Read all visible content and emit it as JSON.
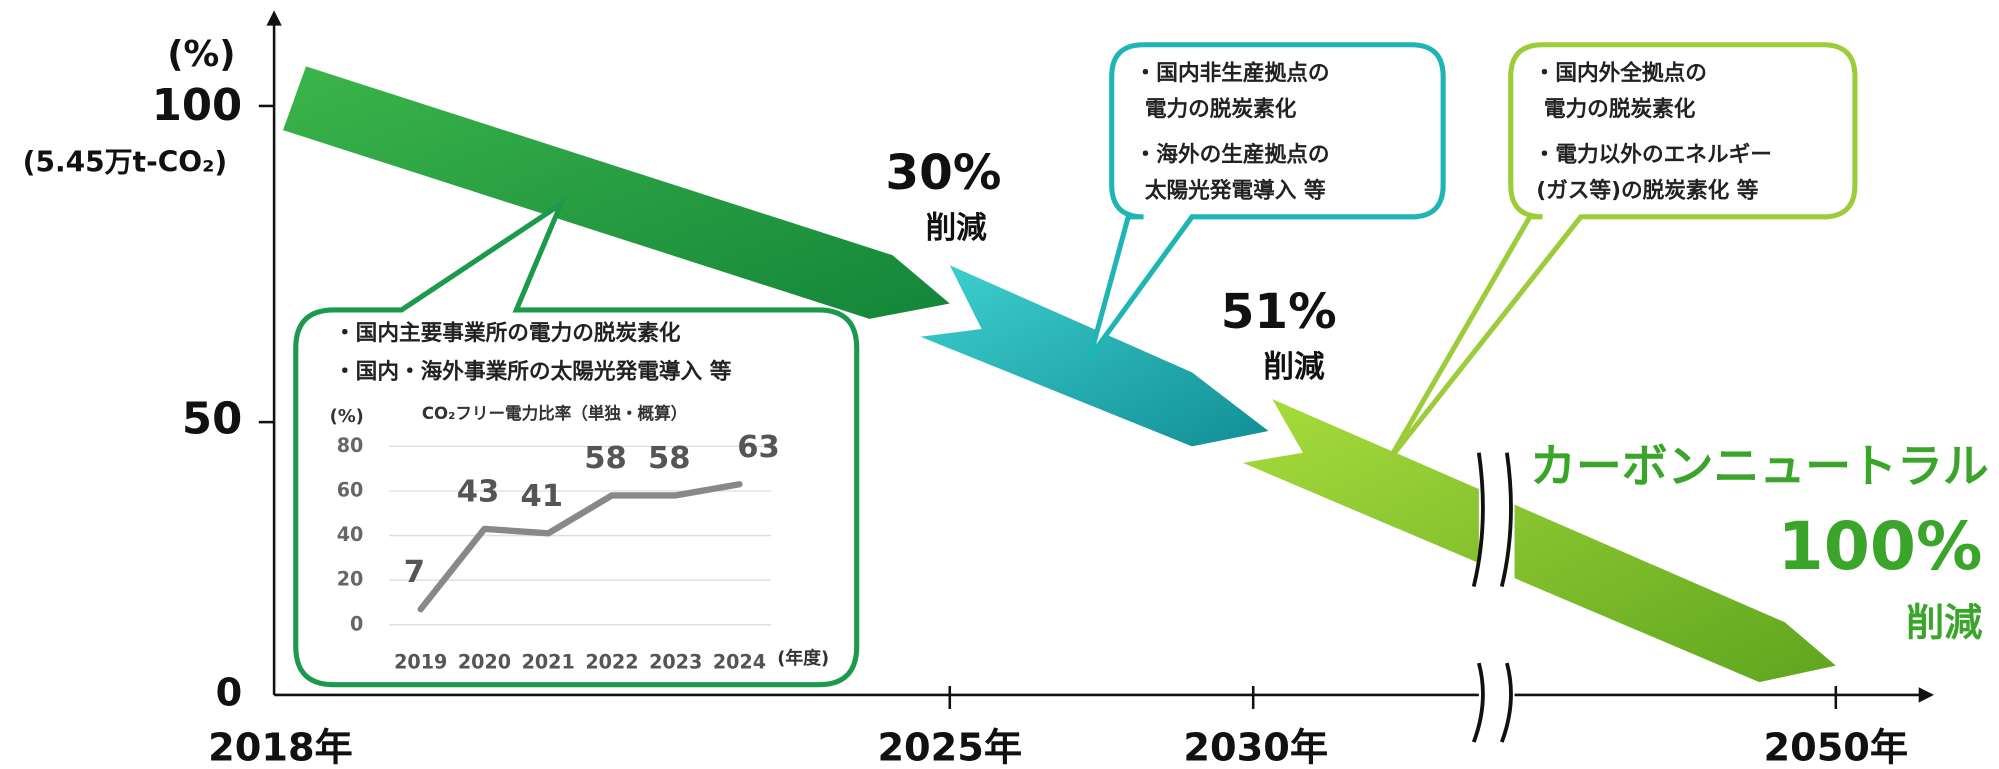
{
  "axis": {
    "y_unit": "(%)",
    "y_labels": [
      "100",
      "50",
      "0"
    ],
    "y_note": "(5.45万t-CO₂)",
    "x_labels": [
      "2018年",
      "2025年",
      "2030年",
      "2050年"
    ]
  },
  "milestones": [
    {
      "value": "30%",
      "label": "削減"
    },
    {
      "value": "51%",
      "label": "削減"
    }
  ],
  "goal": {
    "title": "カーボンニュートラル",
    "value": "100%",
    "label": "削減"
  },
  "callouts": [
    {
      "lines": [
        "・国内主要事業所の電力の脱炭素化",
        "・国内・海外事業所の太陽光発電導入 等"
      ]
    },
    {
      "lines": [
        "・国内非生産拠点の",
        "電力の脱炭素化",
        "・海外の生産拠点の",
        "太陽光発電導入 等"
      ]
    },
    {
      "lines": [
        "・国内外全拠点の",
        "電力の脱炭素化",
        "・電力以外のエネルギー",
        "(ガス等)の脱炭素化 等"
      ]
    }
  ],
  "chart_data": {
    "type": "line",
    "title": "CO₂フリー電力比率（単独・概算）",
    "y_label": "(%)",
    "x_label": "(年度)",
    "categories": [
      "2019",
      "2020",
      "2021",
      "2022",
      "2023",
      "2024"
    ],
    "values": [
      7,
      43,
      41,
      58,
      58,
      63
    ],
    "color": "#888888",
    "ylim": [
      0,
      80
    ],
    "yticks": [
      0,
      20,
      40,
      60,
      80
    ],
    "grid": true
  }
}
